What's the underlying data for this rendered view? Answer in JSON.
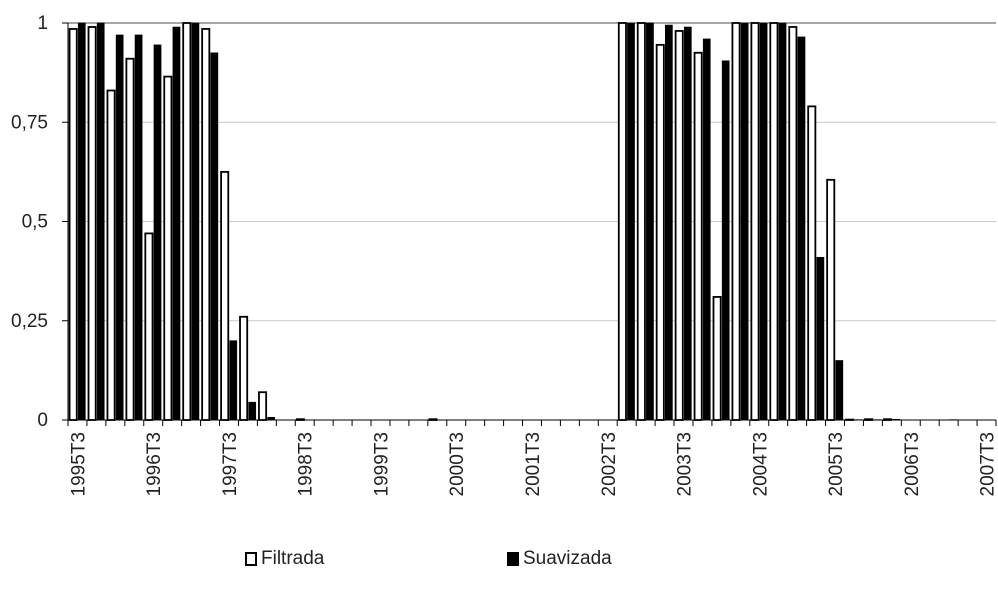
{
  "chart_data": {
    "type": "bar",
    "categories": [
      "1995T3",
      "1995T4",
      "1996T1",
      "1996T2",
      "1996T3",
      "1996T4",
      "1997T1",
      "1997T2",
      "1997T3",
      "1997T4",
      "1998T1",
      "1998T2",
      "1998T3",
      "1998T4",
      "1999T1",
      "1999T2",
      "1999T3",
      "1999T4",
      "2000T1",
      "2000T2",
      "2000T3",
      "2000T4",
      "2001T1",
      "2001T2",
      "2001T3",
      "2001T4",
      "2002T1",
      "2002T2",
      "2002T3",
      "2002T4",
      "2003T1",
      "2003T2",
      "2003T3",
      "2003T4",
      "2004T1",
      "2004T2",
      "2004T3",
      "2004T4",
      "2005T1",
      "2005T2",
      "2005T3",
      "2005T4",
      "2006T1",
      "2006T2",
      "2006T3",
      "2006T4",
      "2007T1",
      "2007T2",
      "2007T3"
    ],
    "tick_labels": [
      "1995T3",
      "1996T3",
      "1997T3",
      "1998T3",
      "1999T3",
      "2000T3",
      "2001T3",
      "2002T3",
      "2003T3",
      "2004T3",
      "2005T3",
      "2006T3",
      "2007T3"
    ],
    "series": [
      {
        "name": "Filtrada",
        "color": "#ffffff",
        "values": [
          0.985,
          0.99,
          0.83,
          0.91,
          0.47,
          0.865,
          1,
          0.985,
          0.625,
          0.26,
          0.07,
          0,
          0.002,
          0,
          0,
          0,
          0,
          0,
          0,
          0.002,
          0,
          0,
          0,
          0,
          0,
          0,
          0,
          0,
          0,
          1,
          1,
          0.945,
          0.98,
          0.925,
          0.31,
          1,
          1,
          1,
          0.99,
          0.79,
          0.605,
          0.001,
          0.002,
          0.002,
          0,
          0,
          0,
          0,
          0
        ]
      },
      {
        "name": "Suavizada",
        "color": "#000000",
        "values": [
          1,
          1,
          0.97,
          0.97,
          0.945,
          0.99,
          1,
          0.925,
          0.2,
          0.045,
          0.007,
          0,
          0,
          0,
          0,
          0,
          0,
          0,
          0,
          0,
          0,
          0,
          0,
          0,
          0,
          0,
          0,
          0,
          0,
          1,
          1,
          0.995,
          0.99,
          0.96,
          0.905,
          1,
          1,
          1,
          0.965,
          0.41,
          0.15,
          0.001,
          0.001,
          0.002,
          0,
          0,
          0.001,
          0,
          0
        ]
      }
    ],
    "yticks": [
      {
        "value": 0,
        "label": "0"
      },
      {
        "value": 0.25,
        "label": "0,25"
      },
      {
        "value": 0.5,
        "label": "0,5"
      },
      {
        "value": 0.75,
        "label": "0,75"
      },
      {
        "value": 1,
        "label": "1"
      }
    ],
    "ylim": [
      0,
      1
    ],
    "grid": true,
    "legend_position": "bottom",
    "title": "",
    "xlabel": "",
    "ylabel": ""
  }
}
